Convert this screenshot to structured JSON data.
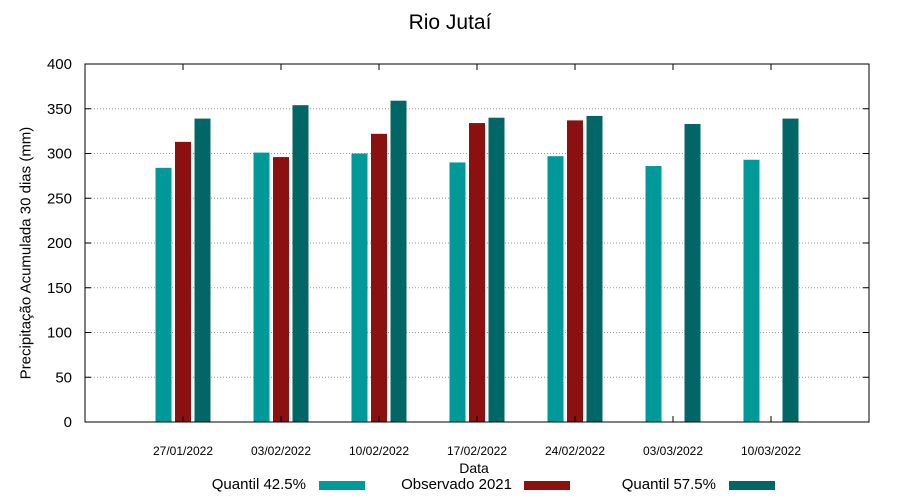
{
  "chart_data": {
    "type": "bar",
    "title": "Rio Jutaí",
    "xlabel": "Data",
    "ylabel": "Precipitação Acumulada 30 dias (mm)",
    "ylim": [
      0,
      400
    ],
    "yticks": [
      0,
      50,
      100,
      150,
      200,
      250,
      300,
      350,
      400
    ],
    "grid": true,
    "legend_position": "bottom",
    "categories": [
      "27/01/2022",
      "03/02/2022",
      "10/02/2022",
      "17/02/2022",
      "24/02/2022",
      "03/03/2022",
      "10/03/2022"
    ],
    "series": [
      {
        "name": "Quantil 42.5%",
        "color": "#009999",
        "values": [
          284,
          301,
          300,
          290,
          297,
          286,
          293
        ]
      },
      {
        "name": "Observado 2021",
        "color": "#8B1010",
        "values": [
          313,
          296,
          322,
          334,
          337,
          null,
          null
        ]
      },
      {
        "name": "Quantil 57.5%",
        "color": "#006666",
        "values": [
          339,
          354,
          359,
          340,
          342,
          333,
          339
        ]
      }
    ]
  }
}
